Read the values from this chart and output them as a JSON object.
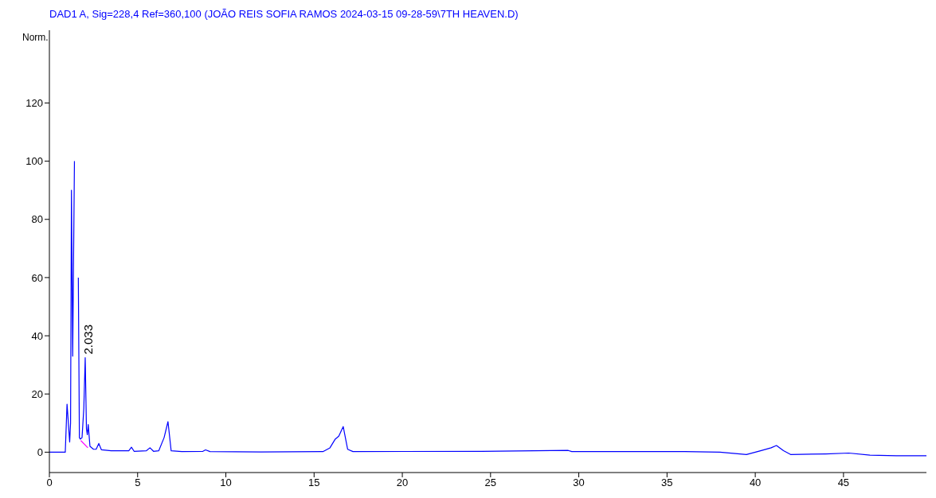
{
  "chart_data": {
    "type": "line",
    "title": "DAD1 A, Sig=228,4 Ref=360,100 (JOÃO REIS SOFIA RAMOS 2024-03-15 09-28-59\\7TH HEAVEN.D)",
    "ylabel": "Norm.",
    "xlim": [
      0,
      49.7
    ],
    "xticks": [
      0,
      5,
      10,
      15,
      20,
      25,
      30,
      35,
      40,
      45
    ],
    "ylim": [
      -7,
      145
    ],
    "yticks": [
      0,
      20,
      40,
      60,
      80,
      100,
      120
    ],
    "marker": "none",
    "annotations": [
      {
        "text": "2.033",
        "x": 2.033,
        "y": 32.5
      }
    ],
    "series": [
      {
        "color": "#0000ff",
        "x": [
          0,
          0.9,
          1.0,
          1.15,
          1.2,
          1.25,
          1.32,
          1.42,
          1.48,
          1.56,
          1.64,
          1.7,
          1.75,
          1.85,
          1.95,
          2.03,
          2.1,
          2.15,
          2.2,
          2.3,
          2.5,
          2.65,
          2.8,
          2.95,
          3.5,
          4.5,
          4.65,
          4.8,
          5.5,
          5.7,
          5.9,
          6.2,
          6.5,
          6.72,
          6.9,
          7.5,
          8.7,
          8.85,
          9.1,
          12,
          15.5,
          15.9,
          16.2,
          16.4,
          16.65,
          16.9,
          17.2,
          24.5,
          29.4,
          29.6,
          36,
          38,
          39.5,
          40.3,
          40.9,
          41.2,
          41.6,
          42,
          44,
          45.3,
          46.5,
          48,
          49.7
        ],
        "values": [
          0,
          0,
          16.5,
          3.5,
          10,
          90,
          33,
          100,
          null,
          null,
          60,
          5,
          4.5,
          5,
          15,
          32.5,
          8,
          6,
          9.5,
          2,
          1,
          1,
          3,
          0.8,
          0.5,
          0.5,
          1.7,
          0.3,
          0.5,
          1.5,
          0.3,
          0.5,
          5,
          10.5,
          0.5,
          0.2,
          0.3,
          0.8,
          0.2,
          0.1,
          0.2,
          1.5,
          4.5,
          5.5,
          8.8,
          1,
          0.2,
          0.3,
          0.6,
          0.2,
          0.2,
          0,
          -0.8,
          0.5,
          1.5,
          2.3,
          0.5,
          -0.8,
          -0.6,
          -0.3,
          -1,
          -1.2,
          -1.2
        ]
      },
      {
        "color": "#ff00ff",
        "x": [
          1.78,
          2.18
        ],
        "values": [
          4,
          1.5
        ]
      }
    ]
  }
}
